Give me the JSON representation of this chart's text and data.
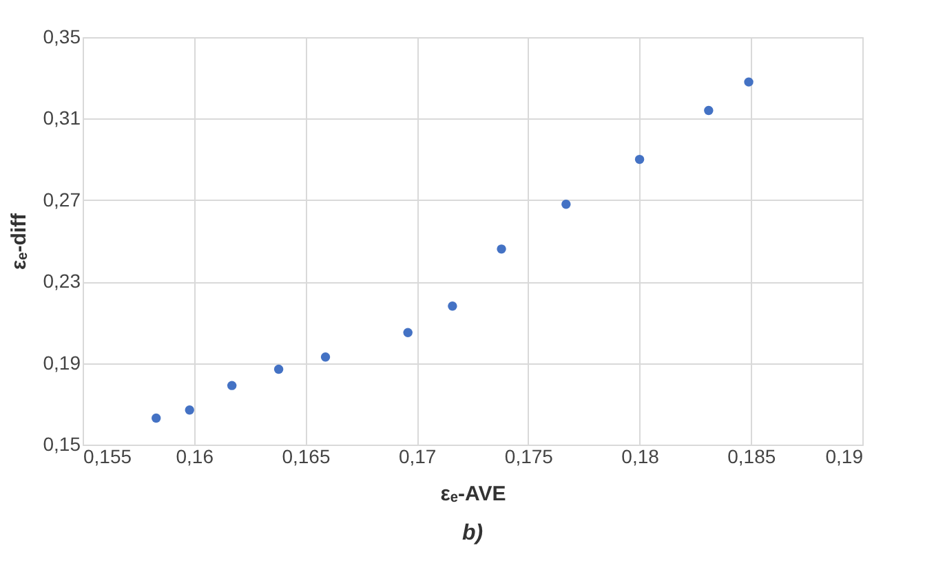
{
  "chart_data": {
    "type": "scatter",
    "xlabel": "εₑ-AVE",
    "ylabel": "εₑ-diff",
    "annotations": [
      "b)"
    ],
    "x": [
      0.1583,
      0.1598,
      0.1617,
      0.1638,
      0.1659,
      0.1696,
      0.1716,
      0.1738,
      0.1767,
      0.18,
      0.1831,
      0.1849
    ],
    "series": [
      {
        "color": "#4472c4",
        "values": [
          0.163,
          0.167,
          0.179,
          0.187,
          0.193,
          0.205,
          0.218,
          0.246,
          0.268,
          0.29,
          0.314,
          0.328
        ]
      }
    ],
    "xlim": [
      0.155,
      0.19
    ],
    "ylim": [
      0.15,
      0.35
    ],
    "xticks": [
      {
        "value": 0.155,
        "label": "0,155"
      },
      {
        "value": 0.16,
        "label": "0,16"
      },
      {
        "value": 0.165,
        "label": "0,165"
      },
      {
        "value": 0.17,
        "label": "0,17"
      },
      {
        "value": 0.175,
        "label": "0,175"
      },
      {
        "value": 0.18,
        "label": "0,18"
      },
      {
        "value": 0.185,
        "label": "0,185"
      },
      {
        "value": 0.19,
        "label": "0,19"
      }
    ],
    "yticks": [
      {
        "value": 0.15,
        "label": "0,15"
      },
      {
        "value": 0.19,
        "label": "0,19"
      },
      {
        "value": 0.23,
        "label": "0,23"
      },
      {
        "value": 0.27,
        "label": "0,27"
      },
      {
        "value": 0.31,
        "label": "0,31"
      },
      {
        "value": 0.35,
        "label": "0,35"
      }
    ],
    "grid": true,
    "marker": "circle"
  }
}
